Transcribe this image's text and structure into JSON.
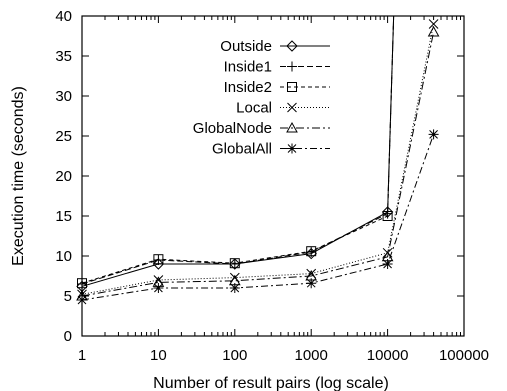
{
  "chart_data": {
    "type": "line",
    "xlabel": "Number of result pairs (log scale)",
    "ylabel": "Execution time (seconds)",
    "xscale": "log",
    "xlim": [
      1,
      100000
    ],
    "ylim": [
      0,
      40
    ],
    "xticks": [
      1,
      10,
      100,
      1000,
      10000,
      100000
    ],
    "xtick_labels": [
      "1",
      "10",
      "100",
      "1000",
      "10000",
      "100000"
    ],
    "yticks": [
      0,
      5,
      10,
      15,
      20,
      25,
      30,
      35,
      40
    ],
    "ytick_labels": [
      "0",
      "5",
      "10",
      "15",
      "20",
      "25",
      "30",
      "35",
      "40"
    ],
    "grid": false,
    "legend_position": "top-right",
    "series": [
      {
        "name": "Outside",
        "marker": "diamond",
        "dash": "none",
        "x": [
          1,
          10,
          100,
          1000,
          10000,
          12000
        ],
        "y": [
          6.2,
          9.0,
          9.0,
          10.3,
          15.5,
          40
        ]
      },
      {
        "name": "Inside1",
        "marker": "plus",
        "dash": "6,3",
        "x": [
          1,
          10,
          100,
          1000,
          10000,
          12000
        ],
        "y": [
          6.5,
          9.5,
          9.0,
          10.5,
          15.3,
          40
        ]
      },
      {
        "name": "Inside2",
        "marker": "square",
        "dash": "4,3",
        "x": [
          1,
          10,
          100,
          1000,
          10000,
          12000
        ],
        "y": [
          6.6,
          9.6,
          9.1,
          10.6,
          15.0,
          40
        ]
      },
      {
        "name": "Local",
        "marker": "x",
        "dash": "1,2",
        "x": [
          1,
          10,
          100,
          1000,
          10000,
          40000
        ],
        "y": [
          5.2,
          7.0,
          7.3,
          7.8,
          10.4,
          39.0
        ]
      },
      {
        "name": "GlobalNode",
        "marker": "triangle",
        "dash": "8,3,2,3",
        "x": [
          1,
          10,
          100,
          1000,
          10000,
          40000
        ],
        "y": [
          5.0,
          6.7,
          6.9,
          7.5,
          9.9,
          38.0
        ]
      },
      {
        "name": "GlobalAll",
        "marker": "star",
        "dash": "7,3,2,3",
        "x": [
          1,
          10,
          100,
          1000,
          10000,
          40000
        ],
        "y": [
          4.5,
          6.0,
          6.0,
          6.6,
          9.0,
          25.2
        ]
      }
    ]
  }
}
